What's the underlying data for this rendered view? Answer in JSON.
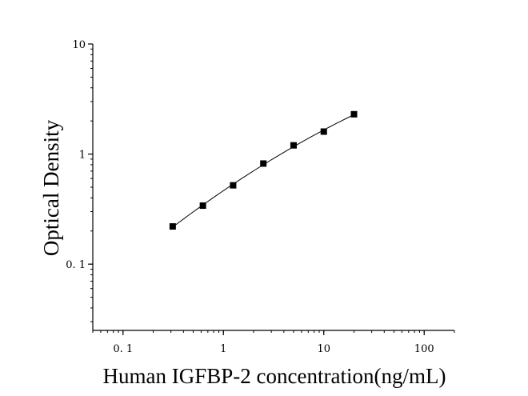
{
  "chart_data": {
    "type": "scatter",
    "x_scale": "log",
    "y_scale": "log",
    "xlabel": "Human IGFBP-2 concentration(ng/mL)",
    "ylabel": "Optical Density",
    "xlim": [
      0.05,
      200
    ],
    "ylim": [
      0.025,
      10
    ],
    "x_ticks": [
      {
        "value": 0.1,
        "label": "0. 1"
      },
      {
        "value": 1,
        "label": "1"
      },
      {
        "value": 10,
        "label": "10"
      },
      {
        "value": 100,
        "label": "100"
      }
    ],
    "y_ticks": [
      {
        "value": 0.1,
        "label": "0. 1"
      },
      {
        "value": 1,
        "label": "1"
      },
      {
        "value": 10,
        "label": "10"
      }
    ],
    "series": [
      {
        "marker": "square",
        "color": "#000000",
        "points": [
          {
            "x": 0.3125,
            "y": 0.22
          },
          {
            "x": 0.625,
            "y": 0.34
          },
          {
            "x": 1.25,
            "y": 0.52
          },
          {
            "x": 2.5,
            "y": 0.82
          },
          {
            "x": 5,
            "y": 1.2
          },
          {
            "x": 10,
            "y": 1.6
          },
          {
            "x": 20,
            "y": 2.3
          }
        ]
      }
    ],
    "fit_curve": true,
    "grid": false
  }
}
